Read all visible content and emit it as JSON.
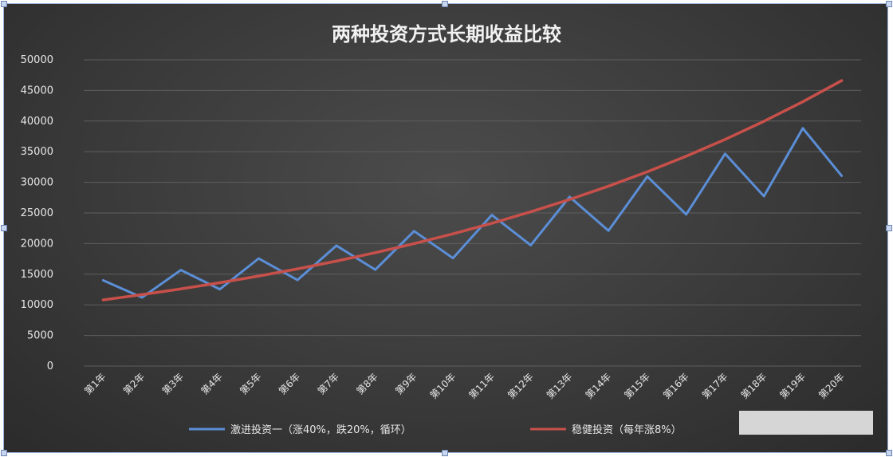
{
  "chart_data": {
    "type": "line",
    "title": "两种投资方式长期收益比较",
    "categories": [
      "第1年",
      "第2年",
      "第3年",
      "第4年",
      "第5年",
      "第6年",
      "第7年",
      "第8年",
      "第9年",
      "第10年",
      "第11年",
      "第12年",
      "第13年",
      "第14年",
      "第15年",
      "第16年",
      "第17年",
      "第18年",
      "第19年",
      "第20年"
    ],
    "ylim": [
      0,
      50000
    ],
    "yticks": [
      0,
      5000,
      10000,
      15000,
      20000,
      25000,
      30000,
      35000,
      40000,
      45000,
      50000
    ],
    "grid": true,
    "legend_position": "bottom",
    "series": [
      {
        "name": "激进投资一（涨40%，跌20%，循环）",
        "color": "#5b8ed6",
        "values": [
          14000,
          11200,
          15680,
          12544,
          17562,
          14049,
          19669,
          15735,
          22029,
          17623,
          24673,
          19738,
          27633,
          22107,
          30950,
          24760,
          34664,
          27731,
          38823,
          31059
        ]
      },
      {
        "name": "稳健投资（每年涨8%）",
        "color": "#c8504a",
        "values": [
          10800,
          11664,
          12597,
          13605,
          14693,
          15869,
          17138,
          18509,
          19990,
          21589,
          23316,
          25182,
          27196,
          29372,
          31722,
          34259,
          37000,
          39960,
          43157,
          46610
        ]
      }
    ]
  }
}
